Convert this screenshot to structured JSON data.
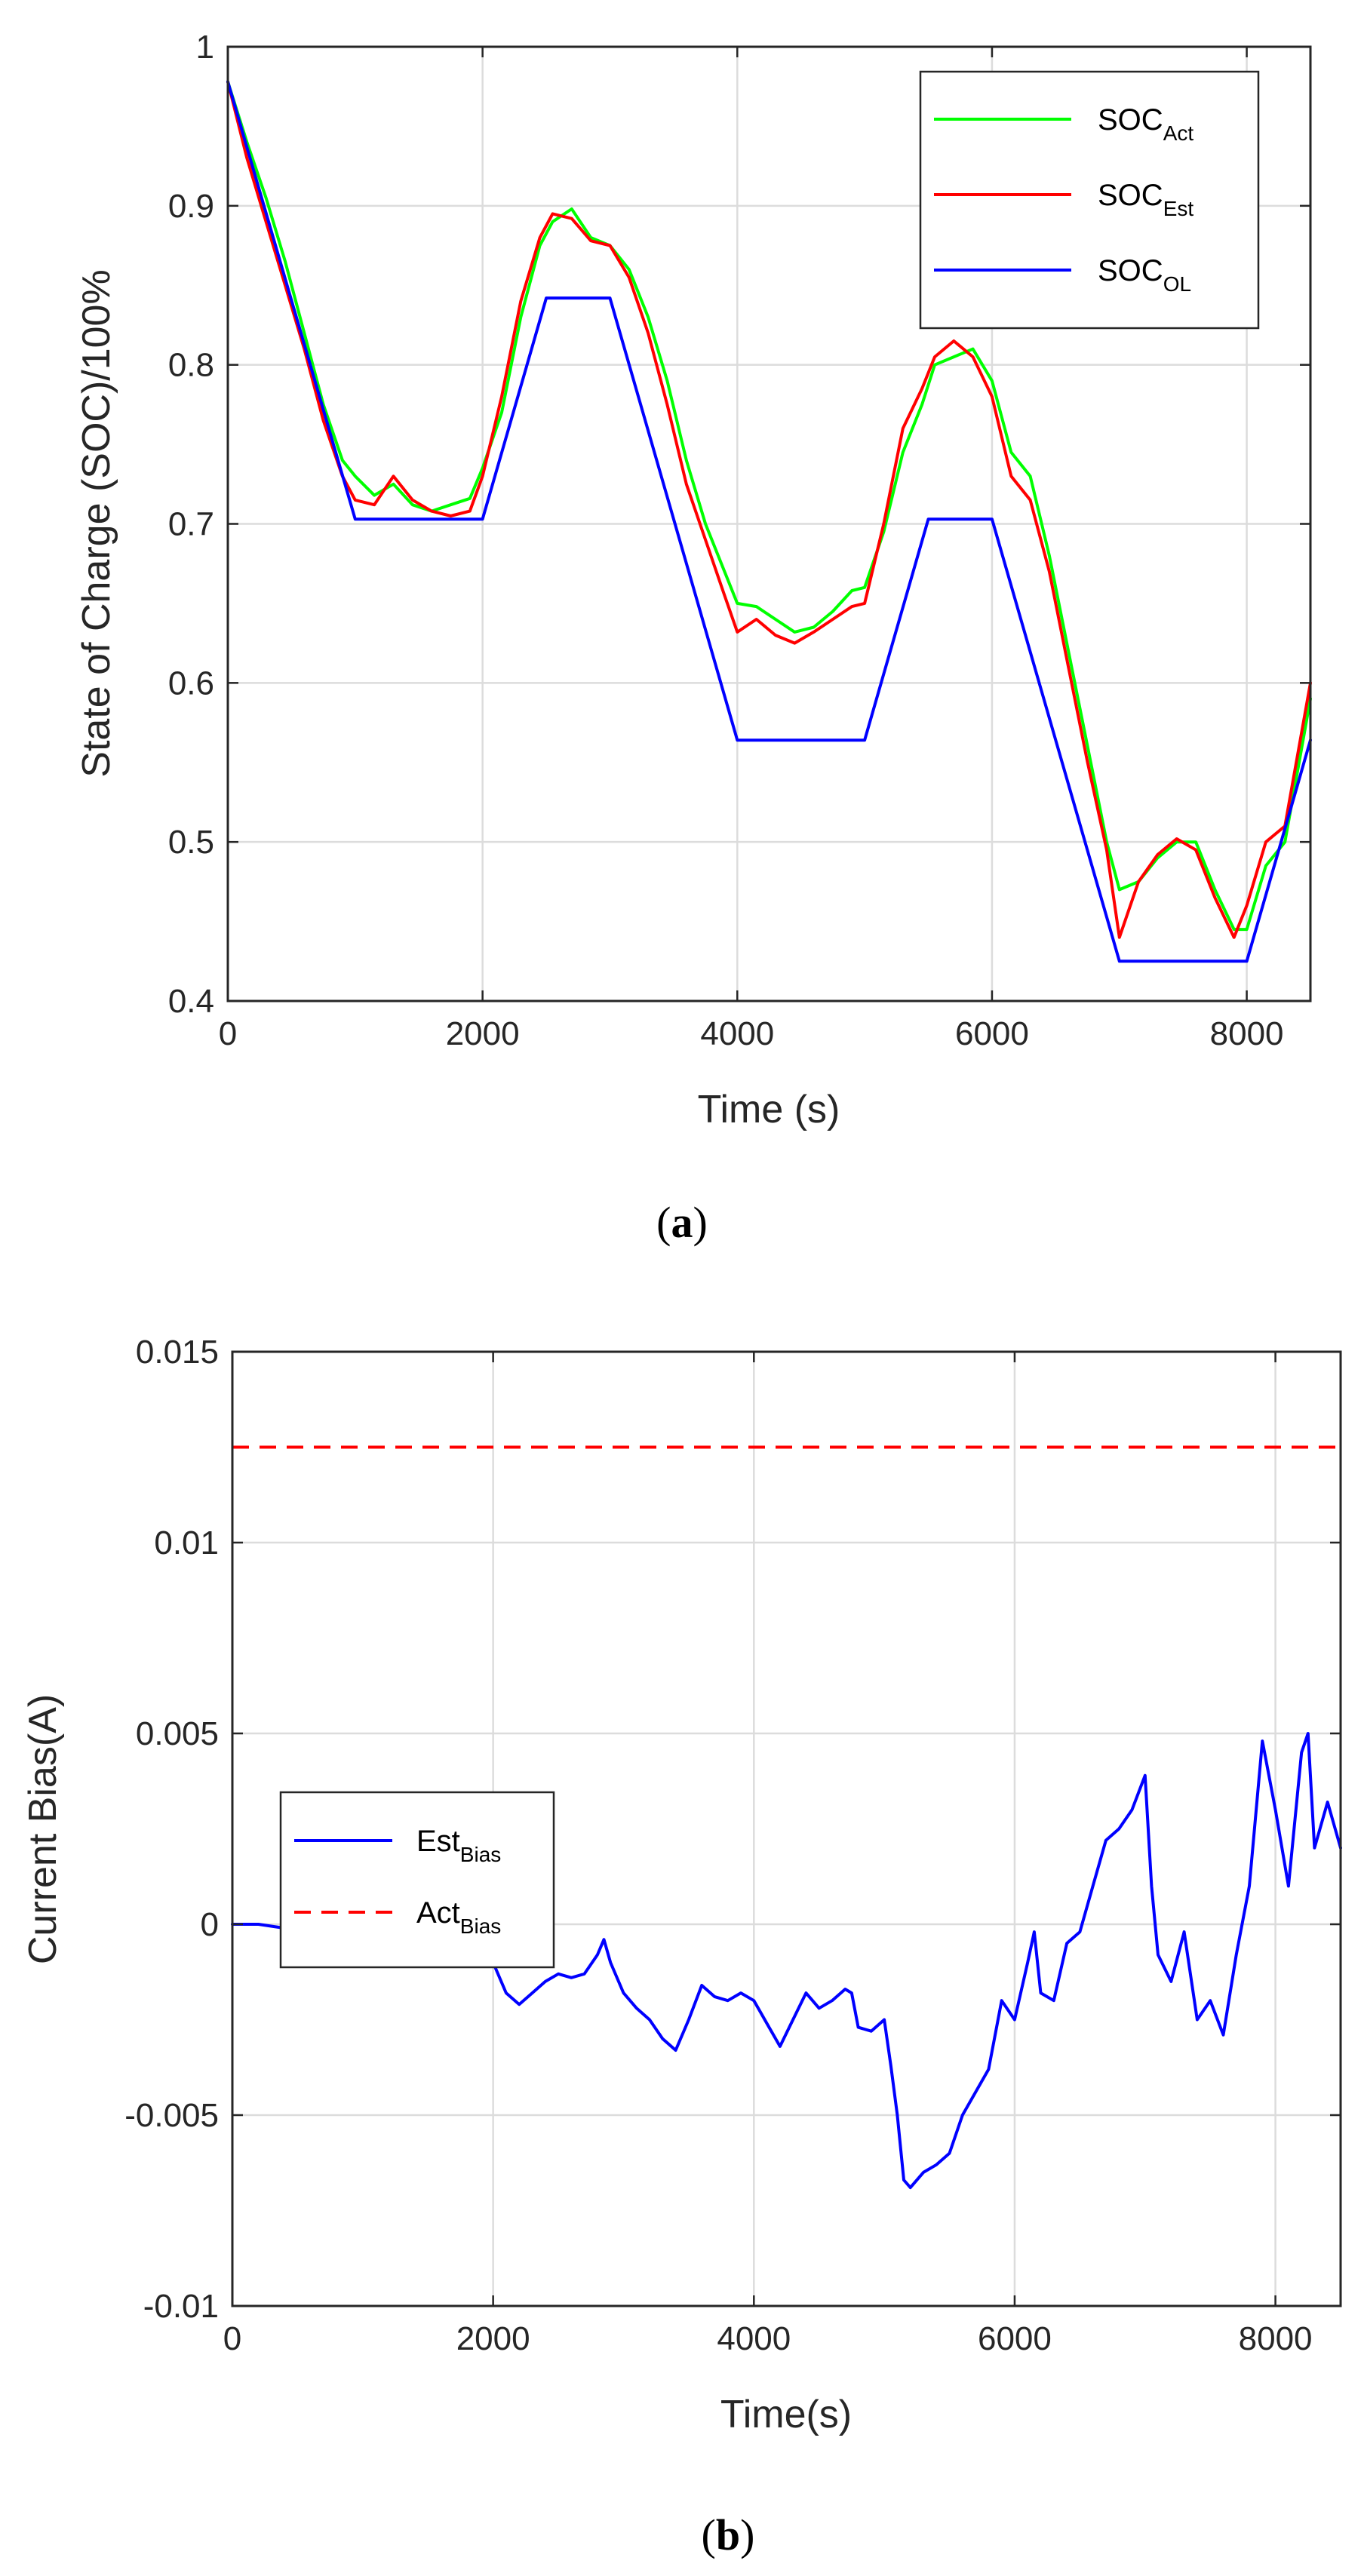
{
  "chart_data": [
    {
      "panel": "a",
      "caption_letter": "a",
      "type": "line",
      "title": "",
      "xlabel": "Time (s)",
      "ylabel": "State of Charge (SOC)/100%",
      "xlim": [
        0,
        8500
      ],
      "ylim": [
        0.4,
        1.0
      ],
      "xticks": [
        0,
        2000,
        4000,
        6000,
        8000
      ],
      "xtick_labels": [
        "0",
        "2000",
        "4000",
        "6000",
        "8000"
      ],
      "yticks": [
        0.4,
        0.5,
        0.6,
        0.7,
        0.8,
        0.9,
        1.0
      ],
      "ytick_labels": [
        "0.4",
        "0.5",
        "0.6",
        "0.7",
        "0.8",
        "0.9",
        "1"
      ],
      "grid": true,
      "legend_position": "top-right",
      "series": [
        {
          "name_main": "SOC",
          "name_sub": "Act",
          "color": "#00ff00",
          "dash": "solid",
          "x": [
            0,
            150,
            300,
            450,
            600,
            750,
            900,
            1000,
            1150,
            1300,
            1450,
            1600,
            1750,
            1900,
            2000,
            2150,
            2300,
            2450,
            2550,
            2700,
            2850,
            3000,
            3150,
            3300,
            3450,
            3600,
            3750,
            3900,
            4000,
            4150,
            4300,
            4450,
            4600,
            4750,
            4900,
            5000,
            5150,
            5300,
            5450,
            5550,
            5700,
            5850,
            6000,
            6150,
            6300,
            6450,
            6600,
            6750,
            6900,
            7000,
            7150,
            7300,
            7450,
            7600,
            7750,
            7900,
            8000,
            8150,
            8300,
            8500
          ],
          "y": [
            0.978,
            0.94,
            0.905,
            0.865,
            0.82,
            0.775,
            0.74,
            0.73,
            0.718,
            0.725,
            0.712,
            0.708,
            0.712,
            0.716,
            0.735,
            0.77,
            0.83,
            0.875,
            0.89,
            0.898,
            0.88,
            0.875,
            0.86,
            0.83,
            0.79,
            0.74,
            0.7,
            0.67,
            0.65,
            0.648,
            0.64,
            0.632,
            0.635,
            0.645,
            0.658,
            0.66,
            0.695,
            0.745,
            0.775,
            0.8,
            0.805,
            0.81,
            0.79,
            0.745,
            0.73,
            0.68,
            0.62,
            0.56,
            0.5,
            0.47,
            0.475,
            0.49,
            0.5,
            0.5,
            0.47,
            0.445,
            0.445,
            0.485,
            0.5,
            0.59
          ]
        },
        {
          "name_main": "SOC",
          "name_sub": "Est",
          "color": "#ff0000",
          "dash": "solid",
          "x": [
            0,
            150,
            300,
            450,
            600,
            750,
            900,
            1000,
            1150,
            1300,
            1450,
            1600,
            1750,
            1900,
            2000,
            2150,
            2300,
            2450,
            2550,
            2700,
            2850,
            3000,
            3150,
            3300,
            3450,
            3600,
            3750,
            3900,
            4000,
            4150,
            4300,
            4450,
            4600,
            4750,
            4900,
            5000,
            5150,
            5300,
            5450,
            5550,
            5700,
            5850,
            6000,
            6150,
            6300,
            6450,
            6600,
            6750,
            6900,
            7000,
            7150,
            7300,
            7450,
            7600,
            7750,
            7900,
            8000,
            8150,
            8300,
            8500
          ],
          "y": [
            0.978,
            0.93,
            0.89,
            0.85,
            0.81,
            0.765,
            0.73,
            0.715,
            0.712,
            0.73,
            0.715,
            0.708,
            0.705,
            0.708,
            0.73,
            0.78,
            0.84,
            0.88,
            0.895,
            0.892,
            0.878,
            0.875,
            0.855,
            0.82,
            0.775,
            0.725,
            0.69,
            0.655,
            0.632,
            0.64,
            0.63,
            0.625,
            0.632,
            0.64,
            0.648,
            0.65,
            0.7,
            0.76,
            0.785,
            0.805,
            0.815,
            0.805,
            0.78,
            0.73,
            0.715,
            0.67,
            0.61,
            0.55,
            0.495,
            0.44,
            0.475,
            0.492,
            0.502,
            0.495,
            0.465,
            0.44,
            0.46,
            0.5,
            0.51,
            0.6
          ]
        },
        {
          "name_main": "SOC",
          "name_sub": "OL",
          "color": "#0000ff",
          "dash": "solid",
          "x": [
            0,
            1000,
            2000,
            2500,
            3000,
            4000,
            5000,
            5500,
            6000,
            7000,
            8000,
            8500
          ],
          "y": [
            0.978,
            0.703,
            0.703,
            0.842,
            0.842,
            0.564,
            0.564,
            0.703,
            0.703,
            0.425,
            0.425,
            0.564
          ]
        }
      ]
    },
    {
      "panel": "b",
      "caption_letter": "b",
      "type": "line",
      "title": "",
      "xlabel": "Time(s)",
      "ylabel": "Current Bias(A)",
      "xlim": [
        0,
        8500
      ],
      "ylim": [
        -0.01,
        0.015
      ],
      "xticks": [
        0,
        2000,
        4000,
        6000,
        8000
      ],
      "xtick_labels": [
        "0",
        "2000",
        "4000",
        "6000",
        "8000"
      ],
      "yticks": [
        -0.01,
        -0.005,
        0,
        0.005,
        0.01,
        0.015
      ],
      "ytick_labels": [
        "-0.01",
        "-0.005",
        "0",
        "0.005",
        "0.01",
        "0.015"
      ],
      "grid": true,
      "legend_position": "middle-left",
      "series": [
        {
          "name_main": "Est",
          "name_sub": "Bias",
          "color": "#0000ff",
          "dash": "solid",
          "x": [
            0,
            200,
            400,
            600,
            800,
            900,
            1000,
            1100,
            1200,
            1300,
            1400,
            1500,
            1600,
            1700,
            1800,
            1900,
            2000,
            2100,
            2200,
            2300,
            2400,
            2500,
            2600,
            2700,
            2800,
            2850,
            2900,
            3000,
            3100,
            3200,
            3300,
            3400,
            3500,
            3600,
            3700,
            3800,
            3900,
            4000,
            4100,
            4200,
            4300,
            4400,
            4500,
            4600,
            4700,
            4750,
            4800,
            4900,
            5000,
            5050,
            5100,
            5150,
            5200,
            5300,
            5400,
            5500,
            5600,
            5700,
            5800,
            5900,
            6000,
            6100,
            6150,
            6200,
            6300,
            6400,
            6500,
            6600,
            6700,
            6800,
            6900,
            7000,
            7050,
            7100,
            7200,
            7300,
            7400,
            7500,
            7600,
            7700,
            7800,
            7900,
            8000,
            8100,
            8200,
            8250,
            8300,
            8400,
            8500
          ],
          "y": [
            0,
            0,
            -0.0001,
            0,
            0.0001,
            0.0002,
            0,
            -0.0002,
            -0.0003,
            -0.0005,
            -0.0003,
            -0.0001,
            0,
            0.0001,
            -0.0002,
            -0.0005,
            -0.001,
            -0.0018,
            -0.0021,
            -0.0018,
            -0.0015,
            -0.0013,
            -0.0014,
            -0.0013,
            -0.0008,
            -0.0004,
            -0.001,
            -0.0018,
            -0.0022,
            -0.0025,
            -0.003,
            -0.0033,
            -0.0025,
            -0.0016,
            -0.0019,
            -0.002,
            -0.0018,
            -0.002,
            -0.0026,
            -0.0032,
            -0.0025,
            -0.0018,
            -0.0022,
            -0.002,
            -0.0017,
            -0.0018,
            -0.0027,
            -0.0028,
            -0.0025,
            -0.0037,
            -0.005,
            -0.0067,
            -0.0069,
            -0.0065,
            -0.0063,
            -0.006,
            -0.005,
            -0.0044,
            -0.0038,
            -0.002,
            -0.0025,
            -0.001,
            -0.0002,
            -0.0018,
            -0.002,
            -0.0005,
            -0.0002,
            0.001,
            0.0022,
            0.0025,
            0.003,
            0.0039,
            0.001,
            -0.0008,
            -0.0015,
            -0.0002,
            -0.0025,
            -0.002,
            -0.0029,
            -0.0008,
            0.001,
            0.0048,
            0.003,
            0.001,
            0.0045,
            0.005,
            0.002,
            0.0032,
            0.002
          ]
        },
        {
          "name_main": "Act",
          "name_sub": "Bias",
          "color": "#ff0000",
          "dash": "dashed",
          "x": [
            0,
            8500
          ],
          "y": [
            0.0125,
            0.0125
          ]
        }
      ]
    }
  ]
}
